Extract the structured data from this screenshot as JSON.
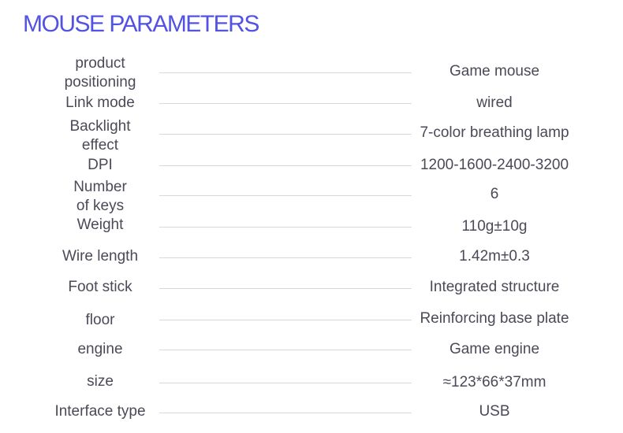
{
  "title": "MOUSE PARAMETERS",
  "rows": [
    {
      "label": "product\npositioning",
      "value": "Game mouse"
    },
    {
      "label": "Link mode",
      "value": "wired"
    },
    {
      "label": "Backlight\neffect",
      "value": "7-color breathing lamp"
    },
    {
      "label": "DPI",
      "value": "1200-1600-2400-3200"
    },
    {
      "label": "Number\nof keys",
      "value": "6"
    },
    {
      "label": "Weight",
      "value": "110g±10g"
    },
    {
      "label": "Wire length",
      "value": "1.42m±0.3"
    },
    {
      "label": "Foot stick",
      "value": "Integrated structure"
    },
    {
      "label": "floor",
      "value": "Reinforcing base plate"
    },
    {
      "label": "engine",
      "value": "Game engine"
    },
    {
      "label": "size",
      "value": "≈123*66*37mm"
    },
    {
      "label": "Interface type",
      "value": "USB"
    }
  ]
}
